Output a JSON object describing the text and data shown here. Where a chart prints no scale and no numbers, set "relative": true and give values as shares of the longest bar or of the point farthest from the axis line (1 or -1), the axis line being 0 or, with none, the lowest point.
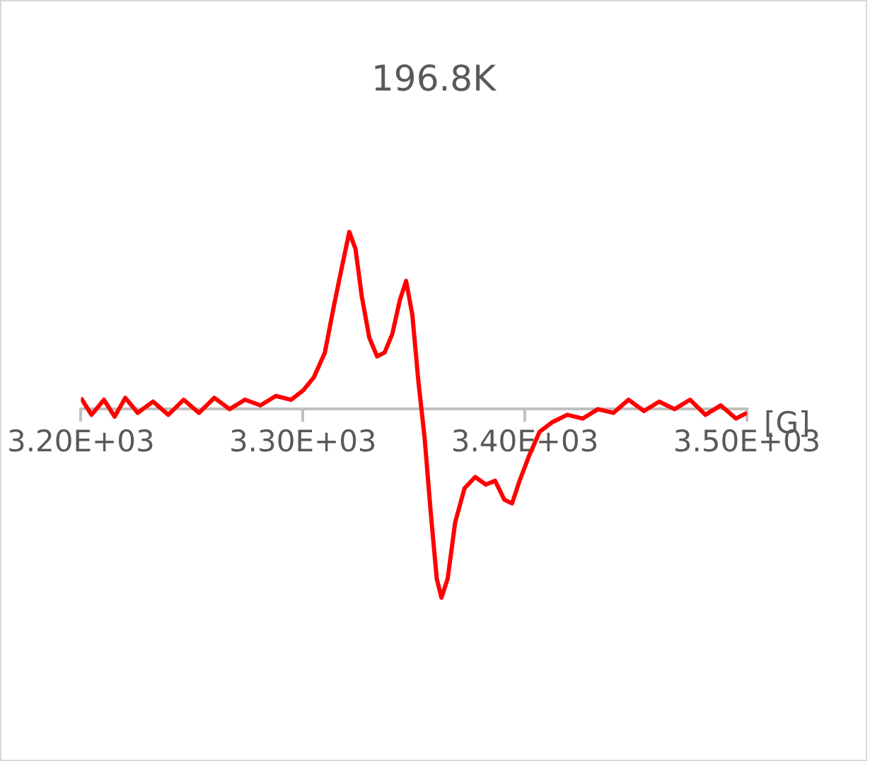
{
  "chart_data": {
    "type": "line",
    "title": "196.8K",
    "xlabel": "[G]",
    "relative": true,
    "marker": "none",
    "line_style": "solid",
    "grid": false,
    "legend": false,
    "xlim": [
      3200,
      3500
    ],
    "xticks": [
      {
        "value": 3200,
        "label": "3.20E+03"
      },
      {
        "value": 3300,
        "label": "3.30E+03"
      },
      {
        "value": 3400,
        "label": "3.40E+03"
      },
      {
        "value": 3500,
        "label": "3.50E+03"
      }
    ],
    "series": [
      {
        "color": "#ff0000",
        "x": [
          3200,
          3204.8,
          3210.4,
          3215.2,
          3220,
          3225.6,
          3232.5,
          3239.4,
          3246.3,
          3253.2,
          3260.1,
          3267,
          3273.9,
          3280.9,
          3287.8,
          3294.7,
          3300.2,
          3305,
          3309.9,
          3314,
          3317.5,
          3320.9,
          3323.7,
          3326.5,
          3329.9,
          3333.4,
          3336.8,
          3340.3,
          3343.7,
          3346.5,
          3349.3,
          3352,
          3354.8,
          3357.6,
          3360.3,
          3362.4,
          3365.2,
          3368.6,
          3372.8,
          3377.6,
          3382.4,
          3386.6,
          3390.7,
          3394.2,
          3397.6,
          3401.8,
          3406.6,
          3412.2,
          3419.1,
          3426,
          3432.9,
          3439.8,
          3446.7,
          3453.6,
          3460.5,
          3467.4,
          3474.4,
          3481.3,
          3488.2,
          3495.1,
          3500
        ],
        "values": [
          0.06,
          -0.03,
          0.05,
          -0.04,
          0.06,
          -0.02,
          0.04,
          -0.03,
          0.05,
          -0.02,
          0.06,
          0.0,
          0.05,
          0.02,
          0.07,
          0.05,
          0.1,
          0.17,
          0.3,
          0.55,
          0.75,
          0.94,
          0.85,
          0.6,
          0.38,
          0.28,
          0.3,
          0.4,
          0.58,
          0.68,
          0.5,
          0.15,
          -0.15,
          -0.55,
          -0.9,
          -1,
          -0.9,
          -0.6,
          -0.42,
          -0.36,
          -0.4,
          -0.38,
          -0.48,
          -0.5,
          -0.38,
          -0.25,
          -0.12,
          -0.07,
          -0.03,
          -0.05,
          0.0,
          -0.02,
          0.05,
          -0.01,
          0.04,
          0.0,
          0.05,
          -0.03,
          0.02,
          -0.05,
          -0.02
        ]
      }
    ]
  }
}
